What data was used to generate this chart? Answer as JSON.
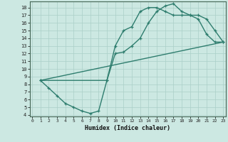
{
  "line1_x": [
    1,
    2,
    3,
    4,
    5,
    6,
    7,
    8,
    9,
    10,
    11,
    12,
    13,
    14,
    15,
    16,
    17,
    18,
    19,
    20,
    21,
    22,
    23
  ],
  "line1_y": [
    8.5,
    7.5,
    6.5,
    5.5,
    5.0,
    4.5,
    4.2,
    4.5,
    8.5,
    12.0,
    12.2,
    13.0,
    14.0,
    16.0,
    17.5,
    18.2,
    18.5,
    17.5,
    17.0,
    17.0,
    16.5,
    15.0,
    13.5
  ],
  "line2_x": [
    1,
    9,
    10,
    11,
    12,
    13,
    14,
    15,
    16,
    17,
    18,
    19,
    20,
    21,
    22,
    23
  ],
  "line2_y": [
    8.5,
    8.5,
    13.0,
    15.0,
    15.5,
    17.5,
    18.0,
    18.0,
    17.5,
    17.0,
    17.0,
    17.0,
    16.5,
    14.5,
    13.5,
    13.5
  ],
  "color": "#2e7d6e",
  "bg_color": "#cce8e2",
  "grid_color": "#aacfc8",
  "xlabel": "Humidex (Indice chaleur)",
  "xlim": [
    -0.3,
    23.3
  ],
  "ylim": [
    3.8,
    18.8
  ],
  "yticks": [
    4,
    5,
    6,
    7,
    8,
    9,
    10,
    11,
    12,
    13,
    14,
    15,
    16,
    17,
    18
  ],
  "xticks": [
    0,
    1,
    2,
    3,
    4,
    5,
    6,
    7,
    8,
    9,
    10,
    11,
    12,
    13,
    14,
    15,
    16,
    17,
    18,
    19,
    20,
    21,
    22,
    23
  ],
  "marker": "+",
  "linewidth": 1.0,
  "markersize": 3.5
}
